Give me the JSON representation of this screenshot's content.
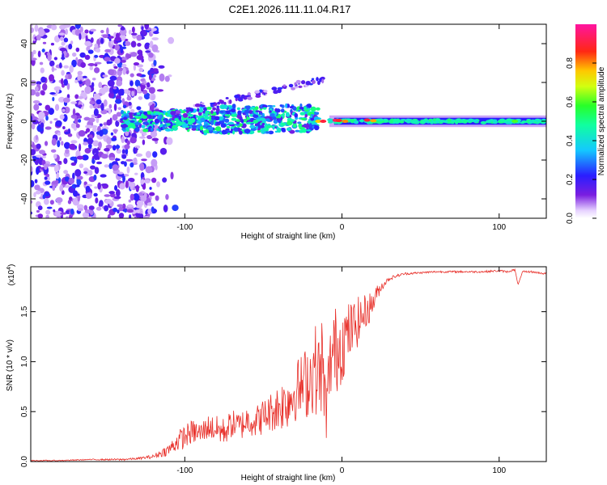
{
  "title": "C2E1.2026.111.11.04.R17",
  "colors": {
    "trace": "#e8302a",
    "axis": "#000000",
    "background": "#ffffff"
  },
  "chart_data": [
    {
      "type": "heatmap",
      "xlabel": "Height of straight line (km)",
      "ylabel": "Frequency (Hz)",
      "xlim": [
        -198,
        130
      ],
      "ylim": [
        -50,
        50
      ],
      "x_ticks": [
        -100,
        0,
        100
      ],
      "x_tick_labels": [
        "-100",
        "0",
        "100"
      ],
      "y_ticks": [
        -40,
        -20,
        0,
        20,
        40
      ],
      "y_tick_labels": [
        "-40",
        "-20",
        "0",
        "20",
        "40"
      ],
      "colorbar": {
        "label": "Normalized spectral amplitude",
        "range": [
          0,
          1
        ],
        "ticks": [
          0.0,
          0.2,
          0.4,
          0.6,
          0.8
        ],
        "tick_labels": [
          "0.0",
          "0.2",
          "0.4",
          "0.6",
          "0.8"
        ]
      },
      "features": [
        {
          "name": "noise-region",
          "x_range": [
            -198,
            -120
          ],
          "freq_range": [
            -50,
            50
          ],
          "amplitude": 0.15
        },
        {
          "name": "main-doppler-line",
          "x_range": [
            -120,
            130
          ],
          "freq": 0,
          "amplitude": 0.5
        },
        {
          "name": "upper-branch",
          "x_range": [
            -110,
            -20
          ],
          "freq_range": [
            5,
            25
          ],
          "amplitude": 0.2
        },
        {
          "name": "peak",
          "x": -10,
          "freq": 0,
          "amplitude": 0.95
        }
      ]
    },
    {
      "type": "line",
      "xlabel": "Height of straight line (km)",
      "ylabel": "SNR (10 * v/v)",
      "scale_label": "(x10^4)",
      "scale_base": "(x10",
      "scale_exp": "4",
      "scale_close": ")",
      "xlim": [
        -198,
        130
      ],
      "ylim": [
        0,
        1.95
      ],
      "x_ticks": [
        -100,
        0,
        100
      ],
      "x_tick_labels": [
        "-100",
        "0",
        "100"
      ],
      "y_ticks": [
        0.0,
        0.5,
        1.0,
        1.5
      ],
      "y_tick_labels": [
        "0.0",
        "0.5",
        "1.0",
        "1.5"
      ],
      "series": [
        {
          "name": "SNR",
          "x": [
            -198,
            -180,
            -160,
            -140,
            -130,
            -120,
            -110,
            -105,
            -100,
            -95,
            -90,
            -85,
            -80,
            -75,
            -70,
            -65,
            -60,
            -55,
            -50,
            -45,
            -40,
            -35,
            -30,
            -25,
            -20,
            -17,
            -15,
            -13,
            -10,
            -7,
            -5,
            -2,
            0,
            3,
            5,
            8,
            10,
            13,
            15,
            18,
            20,
            22,
            25,
            28,
            30,
            35,
            40,
            50,
            60,
            70,
            80,
            90,
            100,
            105,
            110,
            112,
            115,
            120,
            125,
            130
          ],
          "y": [
            0.01,
            0.01,
            0.02,
            0.02,
            0.03,
            0.05,
            0.12,
            0.2,
            0.25,
            0.3,
            0.28,
            0.35,
            0.32,
            0.3,
            0.38,
            0.35,
            0.42,
            0.4,
            0.45,
            0.5,
            0.55,
            0.6,
            0.7,
            0.75,
            0.85,
            0.95,
            0.8,
            1.0,
            0.5,
            1.05,
            1.1,
            1.15,
            1.2,
            1.25,
            1.3,
            1.35,
            1.4,
            1.45,
            1.5,
            1.55,
            1.6,
            1.68,
            1.75,
            1.8,
            1.83,
            1.86,
            1.88,
            1.89,
            1.9,
            1.9,
            1.9,
            1.9,
            1.91,
            1.9,
            1.92,
            1.77,
            1.9,
            1.9,
            1.89,
            1.88
          ],
          "noise": [
            0.005,
            0.005,
            0.005,
            0.01,
            0.01,
            0.02,
            0.06,
            0.1,
            0.12,
            0.12,
            0.12,
            0.12,
            0.14,
            0.14,
            0.14,
            0.15,
            0.15,
            0.16,
            0.18,
            0.2,
            0.25,
            0.28,
            0.3,
            0.35,
            0.4,
            0.45,
            0.5,
            0.5,
            0.3,
            0.45,
            0.45,
            0.45,
            0.4,
            0.35,
            0.3,
            0.28,
            0.25,
            0.2,
            0.18,
            0.15,
            0.12,
            0.08,
            0.05,
            0.03,
            0.02,
            0.015,
            0.012,
            0.01,
            0.01,
            0.01,
            0.01,
            0.01,
            0.01,
            0.01,
            0.01,
            0.0,
            0.01,
            0.01,
            0.01,
            0.01
          ]
        }
      ]
    }
  ]
}
